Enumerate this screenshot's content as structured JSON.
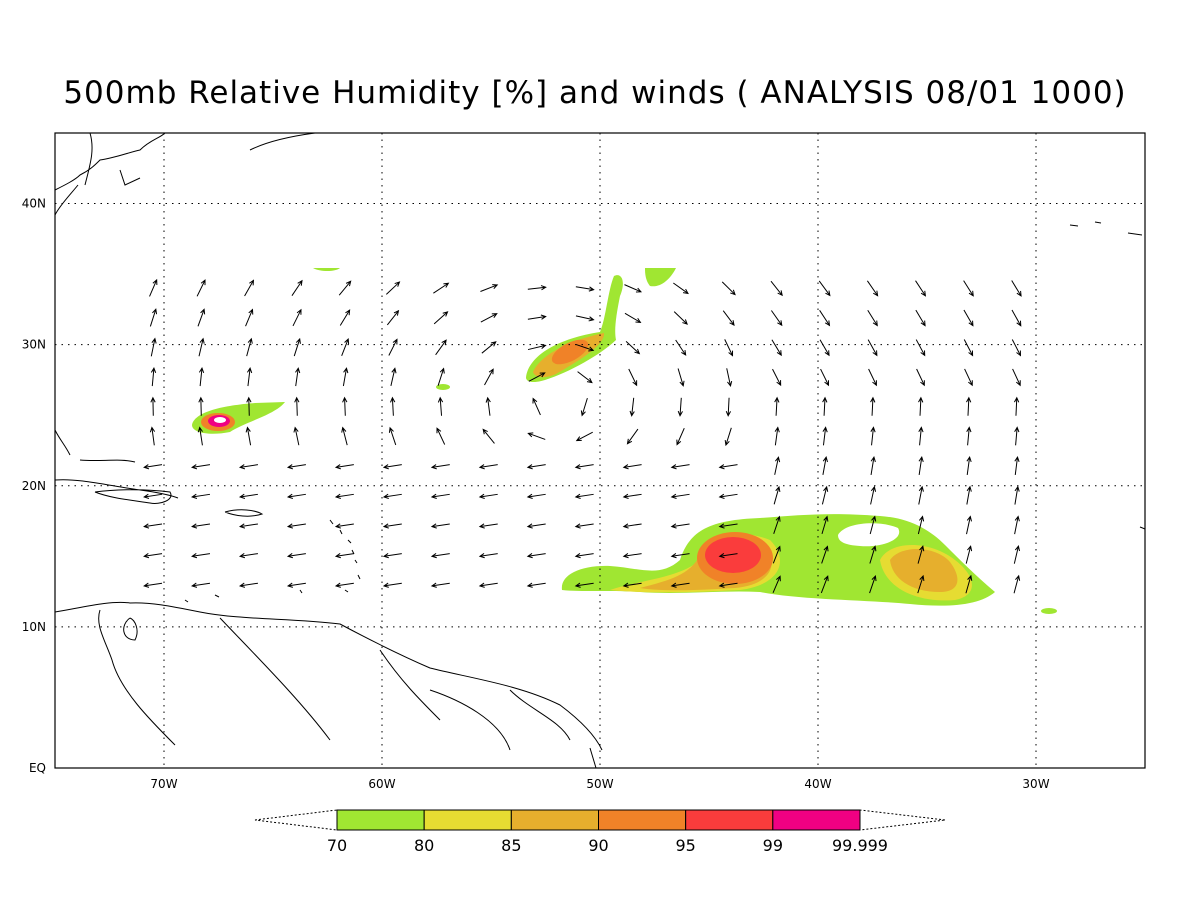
{
  "title": "500mb Relative Humidity [%] and winds ( ANALYSIS 08/01 1000)",
  "map": {
    "lon_range": [
      -75,
      -25
    ],
    "lat_range": [
      0,
      45
    ],
    "lon_ticks": [
      {
        "value": -70,
        "label": "70W"
      },
      {
        "value": -60,
        "label": "60W"
      },
      {
        "value": -50,
        "label": "50W"
      },
      {
        "value": -40,
        "label": "40W"
      },
      {
        "value": -30,
        "label": "30W"
      }
    ],
    "lat_ticks": [
      {
        "value": 0,
        "label": "EQ"
      },
      {
        "value": 10,
        "label": "10N"
      },
      {
        "value": 20,
        "label": "20N"
      },
      {
        "value": 30,
        "label": "30N"
      },
      {
        "value": 40,
        "label": "40N"
      }
    ],
    "grid": true
  },
  "colorbar": {
    "levels": [
      70,
      80,
      85,
      90,
      95,
      99,
      99.999
    ],
    "colors": [
      "#a0e632",
      "#e6dc32",
      "#e6af2d",
      "#f08228",
      "#fa3c3c",
      "#f00082"
    ]
  }
}
